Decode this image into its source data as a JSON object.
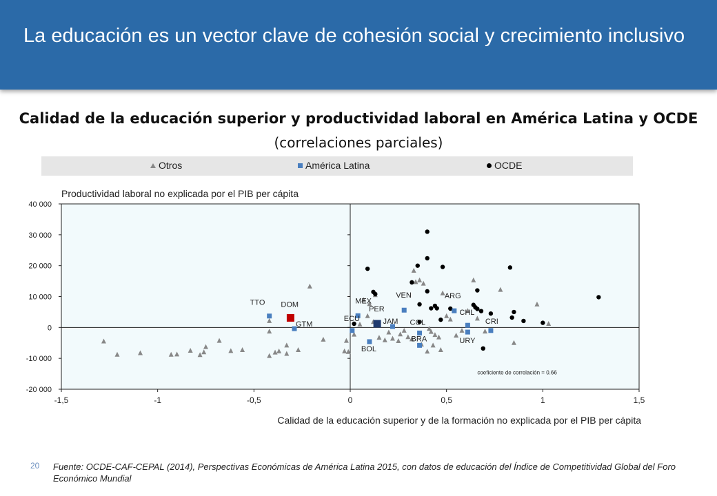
{
  "header": {
    "title": "La educación es un vector clave de cohesión social y crecimiento inclusivo"
  },
  "chart_data": {
    "type": "scatter",
    "title": "Calidad de la educación superior y productividad laboral en América Latina y OCDE",
    "subtitle": "(correlaciones parciales)",
    "xlabel": "Calidad de la educación superior y de la formación no explicada por el PIB per cápita",
    "ylabel": "Productividad laboral no explicada por el PIB per cápita",
    "xlim": [
      -1.5,
      1.5
    ],
    "ylim": [
      -20000,
      40000
    ],
    "x_ticks": [
      -1.5,
      -1,
      -0.5,
      0,
      0.5,
      1,
      1.5
    ],
    "x_tick_labels": [
      "-1,5",
      "-1",
      "-0,5",
      "0",
      "0,5",
      "1",
      "1,5"
    ],
    "y_ticks": [
      -20000,
      -10000,
      0,
      10000,
      20000,
      30000,
      40000
    ],
    "y_tick_labels": [
      "-20 000",
      "-10 000",
      "0",
      "10 000",
      "20 000",
      "30 000",
      "40 000"
    ],
    "annotation": "coeficiente de correlación = 0.66",
    "legend_position": "top",
    "colors": {
      "otros": "#888888",
      "latam": "#4a7fbf",
      "ocde": "#000000",
      "dom": "#c00000",
      "per": "#1f3a6e",
      "plot_bg": "#f2fafc"
    },
    "series": [
      {
        "name": "Otros",
        "marker": "triangle",
        "points": [
          [
            -1.28,
            -4500
          ],
          [
            -1.21,
            -8800
          ],
          [
            -1.09,
            -8300
          ],
          [
            -0.93,
            -8800
          ],
          [
            -0.9,
            -8700
          ],
          [
            -0.83,
            -7500
          ],
          [
            -0.78,
            -8900
          ],
          [
            -0.76,
            -8000
          ],
          [
            -0.75,
            -6300
          ],
          [
            -0.68,
            -4300
          ],
          [
            -0.62,
            -7600
          ],
          [
            -0.56,
            -7300
          ],
          [
            -0.42,
            -9200
          ],
          [
            -0.42,
            -1300
          ],
          [
            -0.42,
            2100
          ],
          [
            -0.39,
            -8100
          ],
          [
            -0.37,
            -7700
          ],
          [
            -0.33,
            -8500
          ],
          [
            -0.33,
            -5800
          ],
          [
            -0.27,
            -7300
          ],
          [
            -0.21,
            13300
          ],
          [
            -0.14,
            -3900
          ],
          [
            -0.03,
            -7700
          ],
          [
            -0.02,
            -4300
          ],
          [
            -0.01,
            -7900
          ],
          [
            0.02,
            -2300
          ],
          [
            0.05,
            1000
          ],
          [
            0.07,
            8900
          ],
          [
            0.09,
            3700
          ],
          [
            0.1,
            7600
          ],
          [
            0.12,
            1800
          ],
          [
            0.13,
            10500
          ],
          [
            0.15,
            -3300
          ],
          [
            0.18,
            -4100
          ],
          [
            0.2,
            -1600
          ],
          [
            0.22,
            -3600
          ],
          [
            0.25,
            -4400
          ],
          [
            0.26,
            -2200
          ],
          [
            0.28,
            -1000
          ],
          [
            0.3,
            -3100
          ],
          [
            0.32,
            -3800
          ],
          [
            0.33,
            18400
          ],
          [
            0.34,
            14700
          ],
          [
            0.36,
            15300
          ],
          [
            0.37,
            -5500
          ],
          [
            0.38,
            14200
          ],
          [
            0.4,
            -7800
          ],
          [
            0.41,
            -400
          ],
          [
            0.42,
            -1400
          ],
          [
            0.43,
            -5800
          ],
          [
            0.44,
            -2400
          ],
          [
            0.46,
            -3200
          ],
          [
            0.47,
            -7300
          ],
          [
            0.48,
            11100
          ],
          [
            0.5,
            3700
          ],
          [
            0.52,
            2600
          ],
          [
            0.55,
            -2600
          ],
          [
            0.58,
            -1000
          ],
          [
            0.61,
            5400
          ],
          [
            0.64,
            15300
          ],
          [
            0.66,
            2900
          ],
          [
            0.7,
            -1300
          ],
          [
            0.78,
            12200
          ],
          [
            0.85,
            -5000
          ],
          [
            0.97,
            7500
          ],
          [
            1.03,
            1200
          ]
        ]
      },
      {
        "name": "América Latina",
        "marker": "square",
        "points": [
          [
            -0.42,
            3700,
            "TTO"
          ],
          [
            -0.31,
            3100,
            "DOM"
          ],
          [
            -0.29,
            -400,
            "GTM"
          ],
          [
            0.04,
            3800,
            "MEX"
          ],
          [
            0.01,
            -1000,
            "ECU"
          ],
          [
            0.14,
            1200,
            "PER"
          ],
          [
            0.1,
            -4600,
            "BOL"
          ],
          [
            0.22,
            300,
            "JAM"
          ],
          [
            0.28,
            5600,
            "VEN"
          ],
          [
            0.36,
            -1800,
            "COL"
          ],
          [
            0.36,
            -5800,
            "BRA"
          ],
          [
            0.54,
            5400,
            "ARG"
          ],
          [
            0.61,
            700,
            "CHL"
          ],
          [
            0.61,
            -1500,
            "URY"
          ],
          [
            0.73,
            -1000,
            "CRI"
          ]
        ]
      },
      {
        "name": "OCDE",
        "marker": "circle",
        "points": [
          [
            0.02,
            1200
          ],
          [
            0.09,
            19000
          ],
          [
            0.12,
            11500
          ],
          [
            0.13,
            10800
          ],
          [
            0.36,
            7500
          ],
          [
            0.35,
            20000
          ],
          [
            0.36,
            1800
          ],
          [
            0.32,
            14600
          ],
          [
            0.4,
            31000
          ],
          [
            0.4,
            11700
          ],
          [
            0.4,
            22400
          ],
          [
            0.42,
            6200
          ],
          [
            0.44,
            7000
          ],
          [
            0.45,
            6200
          ],
          [
            0.47,
            2500
          ],
          [
            0.48,
            19600
          ],
          [
            0.52,
            6100
          ],
          [
            0.64,
            7300
          ],
          [
            0.65,
            6500
          ],
          [
            0.66,
            6000
          ],
          [
            0.66,
            12000
          ],
          [
            0.68,
            5300
          ],
          [
            0.69,
            -6800
          ],
          [
            0.73,
            4500
          ],
          [
            0.83,
            19400
          ],
          [
            0.84,
            3200
          ],
          [
            0.85,
            5000
          ],
          [
            0.9,
            2100
          ],
          [
            1.0,
            1500
          ],
          [
            1.29,
            9800
          ]
        ]
      }
    ]
  },
  "page_number": "20",
  "source": "Fuente: OCDE-CAF-CEPAL (2014), Perspectivas Económicas de América Latina 2015, con datos de educación del Índice de Competitividad Global del Foro Económico Mundial"
}
